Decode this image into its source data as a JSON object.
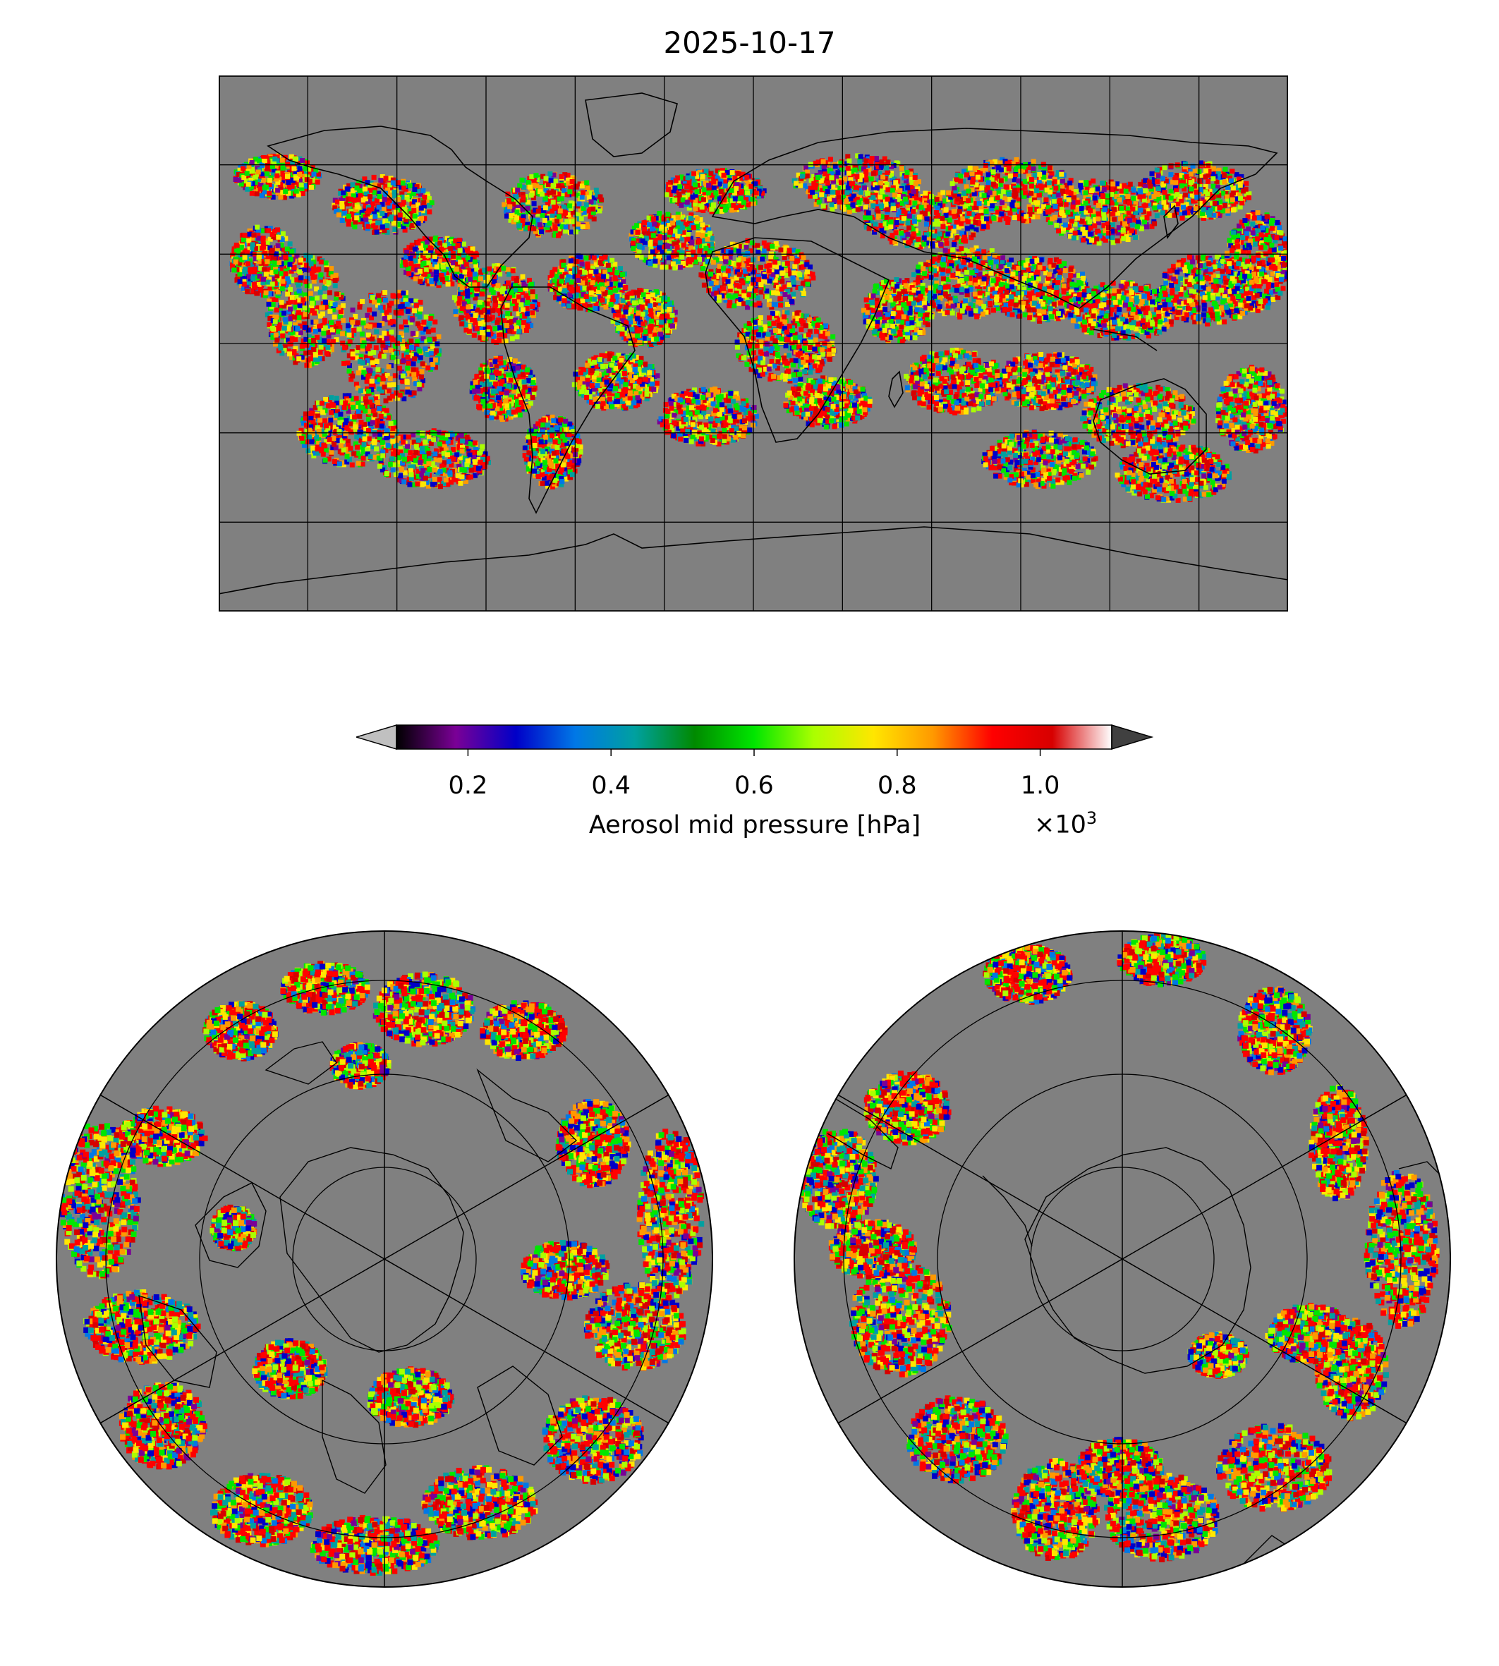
{
  "title": "2025-10-17",
  "colorbar": {
    "label": "Aerosol mid pressure [hPa]",
    "multiplier_text": "×10",
    "multiplier_exponent": "3",
    "ticks": [
      "0.2",
      "0.4",
      "0.6",
      "0.8",
      "1.0"
    ],
    "tick_values": [
      0.2,
      0.4,
      0.6,
      0.8,
      1.0
    ],
    "range": [
      0.1,
      1.1
    ],
    "colors": [
      "#000000",
      "#7a0096",
      "#0000c8",
      "#0078e6",
      "#00a0a0",
      "#008a00",
      "#00e600",
      "#aaff00",
      "#ffe600",
      "#ff9900",
      "#ff0000",
      "#d70000",
      "#ffffff"
    ],
    "extend_low_color": "#c0c0c0",
    "extend_high_color": "#404040"
  },
  "panels": {
    "global_map": {
      "projection": "plate-carree",
      "background": "#808080"
    },
    "north_polar_map": {
      "projection": "north-polar-stereographic",
      "background": "#808080"
    },
    "south_polar_map": {
      "projection": "south-polar-stereographic",
      "background": "#808080"
    }
  }
}
